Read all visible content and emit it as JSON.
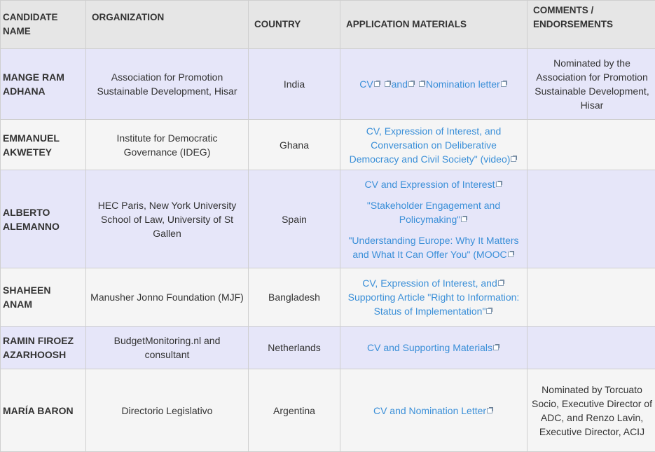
{
  "headers": [
    "CANDIDATE NAME",
    "ORGANIZATION",
    "COUNTRY",
    "APPLICATION MATERIALS",
    "COMMENTS / ENDORSEMENTS"
  ],
  "colors": {
    "header_bg": "#e6e6e6",
    "odd_row": "#e6e6f9",
    "even_row": "#f5f5f5",
    "link": "#3a8fd8",
    "border": "#cfcfcf"
  },
  "rows": [
    {
      "name": "MANGE RAM ADHANA",
      "organization": "Association for Promotion Sustainable Development, Hisar",
      "country": "India",
      "materials": [
        [
          {
            "text": "CV",
            "pre": false
          },
          {
            "text": "and",
            "pre": true
          },
          {
            "text": "Nomination letter",
            "pre": true
          }
        ]
      ],
      "comments": "Nominated by the Association for Promotion Sustainable Development, Hisar"
    },
    {
      "name": "EMMANUEL AKWETEY",
      "organization": "Institute for Democratic Governance (IDEG)",
      "country": "Ghana",
      "materials": [
        [
          {
            "text": "CV, Expression of Interest, and Conversation on Deliberative Democracy and Civil Society\" (video)",
            "pre": false
          }
        ]
      ],
      "comments": ""
    },
    {
      "name": "ALBERTO ALEMANNO",
      "organization": "HEC Paris, New York University School of Law, University of St Gallen",
      "country": "Spain",
      "materials": [
        [
          {
            "text": "CV and Expression of Interest",
            "pre": false
          }
        ],
        [
          {
            "text": "\"Stakeholder Engagement and Policymaking\"",
            "pre": false
          }
        ],
        [
          {
            "text": "\"Understanding Europe: Why It Matters and What It Can Offer You\" (MOOC",
            "pre": false
          }
        ]
      ],
      "comments": ""
    },
    {
      "name": "SHAHEEN ANAM",
      "organization": "Manusher Jonno Foundation (MJF)",
      "country": "Bangladesh",
      "materials": [
        [
          {
            "text": "CV, Expression of Interest, and",
            "pre": false
          },
          {
            "text": "Supporting Article \"Right to Information: Status of Implementation\"",
            "pre": false,
            "space": true
          }
        ]
      ],
      "comments": ""
    },
    {
      "name": "RAMIN FIROEZ AZARHOOSH",
      "organization": "BudgetMonitoring.nl and consultant",
      "country": "Netherlands",
      "materials": [
        [
          {
            "text": "CV and Supporting Materials",
            "pre": false
          }
        ]
      ],
      "comments": ""
    },
    {
      "name": "MARÍA BARON",
      "organization": "Directorio Legislativo",
      "country": "Argentina",
      "materials": [
        [
          {
            "text": "CV and Nomination Letter",
            "pre": false
          }
        ]
      ],
      "comments": "Nominated by Torcuato Socio, Executive Director of ADC, and Renzo Lavin, Executive Director, ACIJ"
    }
  ]
}
